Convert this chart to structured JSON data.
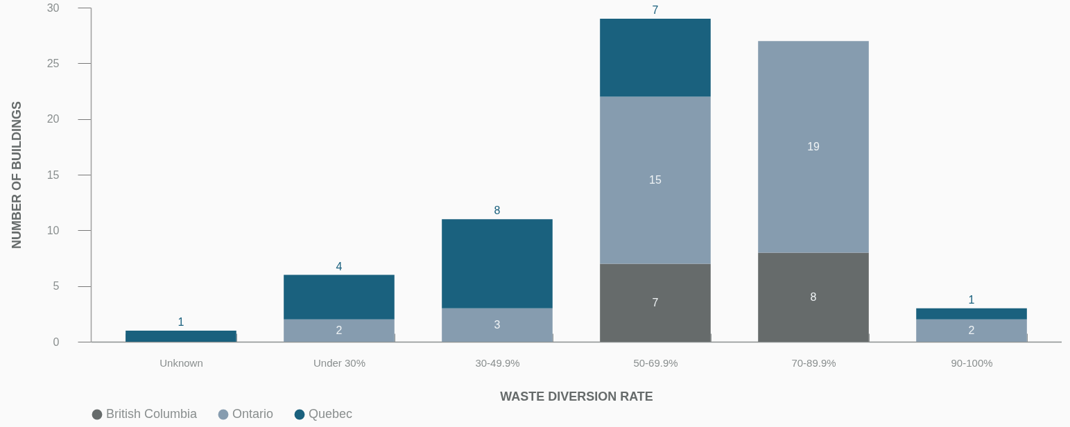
{
  "chart_data": {
    "type": "bar",
    "categories": [
      "Unknown",
      "Under 30%",
      "30-49.9%",
      "50-69.9%",
      "70-89.9%",
      "90-100%"
    ],
    "series": [
      {
        "name": "British Columbia",
        "color": "#666b6b",
        "values": [
          null,
          null,
          null,
          7,
          8,
          null
        ]
      },
      {
        "name": "Ontario",
        "color": "#869caf",
        "values": [
          null,
          2,
          3,
          15,
          19,
          2
        ]
      },
      {
        "name": "Quebec",
        "color": "#1a617e",
        "values": [
          1,
          4,
          8,
          7,
          null,
          1
        ]
      }
    ],
    "stacked": true,
    "xlabel": "WASTE DIVERSION RATE",
    "ylabel": "NUMBER OF BUILDINGS",
    "ylim": [
      0,
      30
    ],
    "yticks": [
      0,
      5,
      10,
      15,
      20,
      25,
      30
    ],
    "data_labels": true,
    "legend": "bottom left",
    "grid": false
  }
}
